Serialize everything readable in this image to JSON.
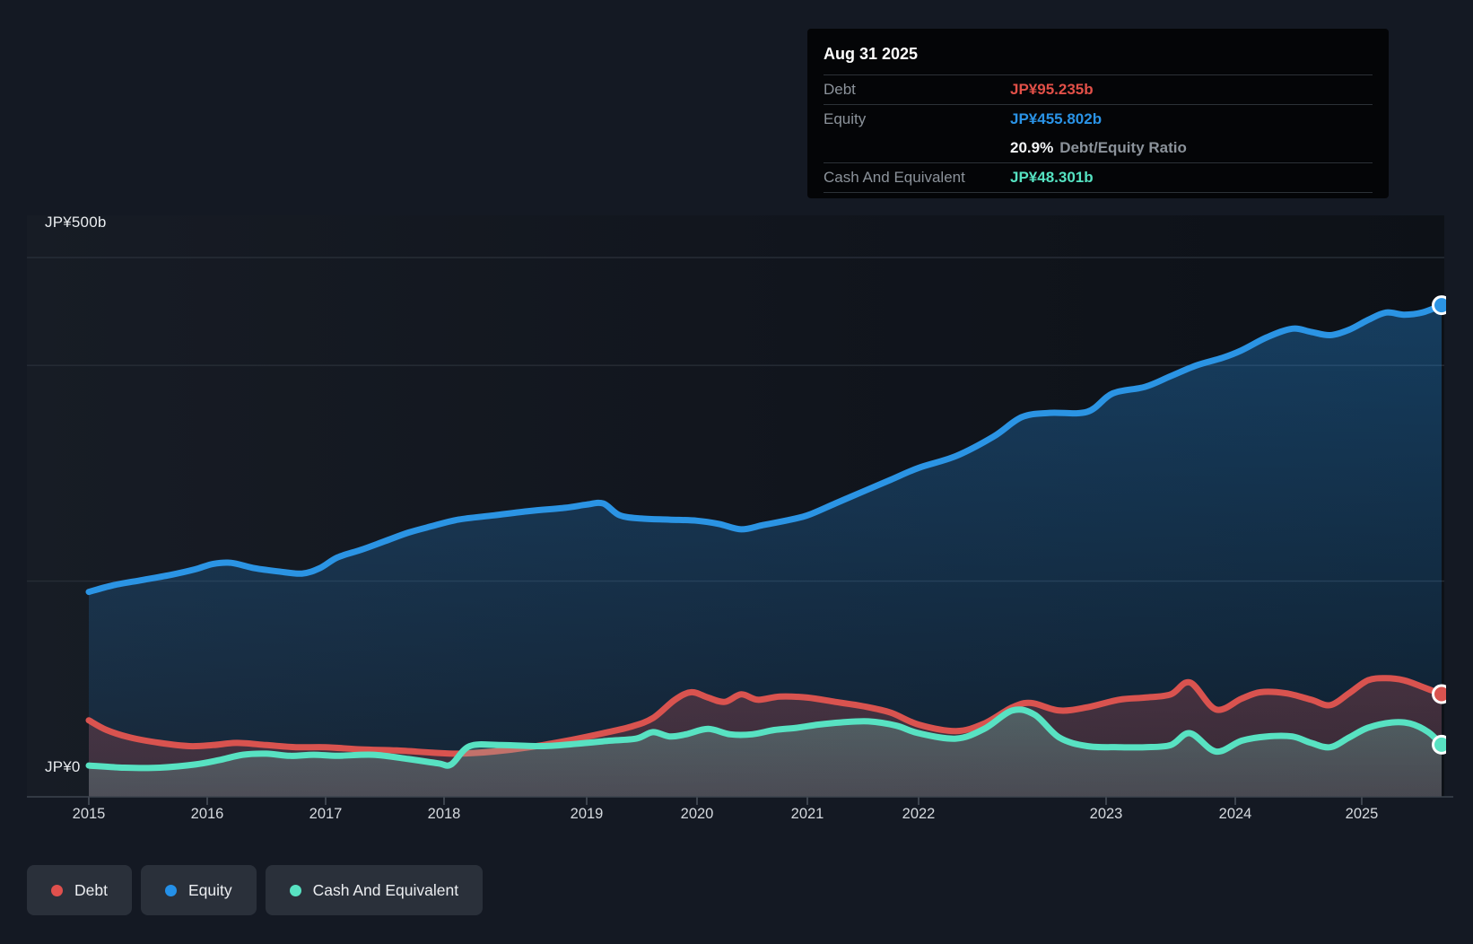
{
  "tooltip": {
    "date": "Aug 31 2025",
    "rows": [
      {
        "label": "Debt",
        "value": "JP¥95.235b",
        "color": "#e25048",
        "suffix": "",
        "divider": true
      },
      {
        "label": "Equity",
        "value": "JP¥455.802b",
        "color": "#2a93e6",
        "suffix": "",
        "divider": false
      },
      {
        "label": "",
        "value": "20.9%",
        "color": "#f3f5f7",
        "suffix": "Debt/Equity Ratio",
        "divider": true
      },
      {
        "label": "Cash And Equivalent",
        "value": "JP¥48.301b",
        "color": "#55e2c1",
        "suffix": "",
        "divider": true
      }
    ]
  },
  "y_axis": {
    "top_label": "JP¥500b",
    "bottom_label": "JP¥0"
  },
  "legend": [
    {
      "label": "Debt",
      "color": "#e0504d"
    },
    {
      "label": "Equity",
      "color": "#2490e8"
    },
    {
      "label": "Cash And Equivalent",
      "color": "#58e2c2"
    }
  ],
  "colors": {
    "background": "#141923",
    "gridline": "#272d36",
    "axis": "#3d444e",
    "debt_line": "#d9534f",
    "equity_line": "#2b94e4",
    "cash_line": "#58e2c2",
    "marker_ring": "#ffffff"
  },
  "chart_data": {
    "type": "area",
    "unit": "JP¥ billions",
    "ylim": [
      0,
      500
    ],
    "gridlines_b": [
      500,
      400,
      200
    ],
    "x_range": [
      2015.0,
      2025.66
    ],
    "x_ticks": [
      "2015",
      "2016",
      "2017",
      "2018",
      "2019",
      "2020",
      "2021",
      "2022",
      "2023",
      "2024",
      "2025"
    ],
    "as_of": "Aug 31 2025",
    "legend_position": "bottom-left",
    "series": [
      {
        "name": "Equity",
        "color": "#2b94e4",
        "points": [
          [
            2015.0,
            190
          ],
          [
            2015.2,
            196
          ],
          [
            2015.45,
            201
          ],
          [
            2015.7,
            206
          ],
          [
            2015.9,
            211
          ],
          [
            2016.05,
            216
          ],
          [
            2016.2,
            217
          ],
          [
            2016.4,
            212
          ],
          [
            2016.6,
            209
          ],
          [
            2016.8,
            207
          ],
          [
            2016.95,
            212
          ],
          [
            2017.1,
            222
          ],
          [
            2017.3,
            229
          ],
          [
            2017.5,
            237
          ],
          [
            2017.7,
            245
          ],
          [
            2017.9,
            251
          ],
          [
            2018.1,
            257
          ],
          [
            2018.35,
            261
          ],
          [
            2018.6,
            265
          ],
          [
            2018.85,
            268
          ],
          [
            2019.0,
            271
          ],
          [
            2019.15,
            272
          ],
          [
            2019.3,
            261
          ],
          [
            2019.5,
            258
          ],
          [
            2019.75,
            257
          ],
          [
            2020.0,
            256
          ],
          [
            2020.2,
            253
          ],
          [
            2020.4,
            248
          ],
          [
            2020.6,
            252
          ],
          [
            2020.8,
            256
          ],
          [
            2021.0,
            261
          ],
          [
            2021.25,
            272
          ],
          [
            2021.5,
            283
          ],
          [
            2021.75,
            294
          ],
          [
            2022.0,
            305
          ],
          [
            2022.2,
            316
          ],
          [
            2022.4,
            334
          ],
          [
            2022.55,
            352
          ],
          [
            2022.7,
            356
          ],
          [
            2022.9,
            357
          ],
          [
            2023.05,
            374
          ],
          [
            2023.3,
            380
          ],
          [
            2023.5,
            390
          ],
          [
            2023.7,
            400
          ],
          [
            2023.9,
            407
          ],
          [
            2024.05,
            414
          ],
          [
            2024.25,
            426
          ],
          [
            2024.45,
            434
          ],
          [
            2024.6,
            431
          ],
          [
            2024.75,
            428
          ],
          [
            2024.9,
            433
          ],
          [
            2025.05,
            442
          ],
          [
            2025.2,
            449
          ],
          [
            2025.35,
            447
          ],
          [
            2025.5,
            449
          ],
          [
            2025.66,
            455.802
          ]
        ]
      },
      {
        "name": "Debt",
        "color": "#d9534f",
        "points": [
          [
            2015.0,
            71
          ],
          [
            2015.15,
            62
          ],
          [
            2015.35,
            55
          ],
          [
            2015.6,
            50
          ],
          [
            2015.85,
            47
          ],
          [
            2016.05,
            48
          ],
          [
            2016.25,
            50
          ],
          [
            2016.5,
            48
          ],
          [
            2016.75,
            46
          ],
          [
            2017.0,
            46
          ],
          [
            2017.3,
            44
          ],
          [
            2017.6,
            43
          ],
          [
            2017.9,
            41
          ],
          [
            2018.1,
            40
          ],
          [
            2018.35,
            42
          ],
          [
            2018.6,
            46
          ],
          [
            2018.9,
            53
          ],
          [
            2019.15,
            59
          ],
          [
            2019.4,
            65
          ],
          [
            2019.6,
            73
          ],
          [
            2019.8,
            90
          ],
          [
            2019.95,
            97
          ],
          [
            2020.1,
            92
          ],
          [
            2020.25,
            88
          ],
          [
            2020.4,
            95
          ],
          [
            2020.55,
            90
          ],
          [
            2020.75,
            93
          ],
          [
            2021.0,
            92
          ],
          [
            2021.25,
            88
          ],
          [
            2021.5,
            84
          ],
          [
            2021.75,
            78
          ],
          [
            2022.0,
            67
          ],
          [
            2022.2,
            61
          ],
          [
            2022.35,
            68
          ],
          [
            2022.5,
            83
          ],
          [
            2022.6,
            87
          ],
          [
            2022.75,
            80
          ],
          [
            2022.9,
            83
          ],
          [
            2023.1,
            90
          ],
          [
            2023.3,
            92
          ],
          [
            2023.5,
            95
          ],
          [
            2023.65,
            106
          ],
          [
            2023.85,
            81
          ],
          [
            2024.05,
            91
          ],
          [
            2024.2,
            97
          ],
          [
            2024.4,
            96
          ],
          [
            2024.6,
            90
          ],
          [
            2024.75,
            85
          ],
          [
            2024.9,
            96
          ],
          [
            2025.05,
            108
          ],
          [
            2025.2,
            110
          ],
          [
            2025.35,
            108
          ],
          [
            2025.5,
            102
          ],
          [
            2025.66,
            95.235
          ]
        ]
      },
      {
        "name": "Cash And Equivalent",
        "color": "#58e2c2",
        "points": [
          [
            2015.0,
            29
          ],
          [
            2015.3,
            27
          ],
          [
            2015.6,
            27
          ],
          [
            2015.9,
            30
          ],
          [
            2016.1,
            34
          ],
          [
            2016.3,
            39
          ],
          [
            2016.5,
            40
          ],
          [
            2016.7,
            38
          ],
          [
            2016.9,
            39
          ],
          [
            2017.1,
            38
          ],
          [
            2017.4,
            39
          ],
          [
            2017.7,
            35
          ],
          [
            2017.95,
            31
          ],
          [
            2018.05,
            30
          ],
          [
            2018.18,
            47
          ],
          [
            2018.4,
            48
          ],
          [
            2018.7,
            47
          ],
          [
            2019.0,
            50
          ],
          [
            2019.2,
            52
          ],
          [
            2019.45,
            54
          ],
          [
            2019.6,
            60
          ],
          [
            2019.75,
            56
          ],
          [
            2019.9,
            58
          ],
          [
            2020.1,
            63
          ],
          [
            2020.3,
            58
          ],
          [
            2020.5,
            58
          ],
          [
            2020.7,
            62
          ],
          [
            2020.9,
            64
          ],
          [
            2021.1,
            67
          ],
          [
            2021.3,
            69
          ],
          [
            2021.55,
            70
          ],
          [
            2021.8,
            66
          ],
          [
            2022.0,
            59
          ],
          [
            2022.2,
            54
          ],
          [
            2022.35,
            63
          ],
          [
            2022.5,
            80
          ],
          [
            2022.62,
            76
          ],
          [
            2022.75,
            55
          ],
          [
            2022.9,
            47
          ],
          [
            2023.1,
            46
          ],
          [
            2023.3,
            46
          ],
          [
            2023.5,
            48
          ],
          [
            2023.65,
            59
          ],
          [
            2023.85,
            42
          ],
          [
            2024.05,
            52
          ],
          [
            2024.25,
            56
          ],
          [
            2024.45,
            56
          ],
          [
            2024.6,
            50
          ],
          [
            2024.75,
            46
          ],
          [
            2024.9,
            55
          ],
          [
            2025.05,
            64
          ],
          [
            2025.25,
            69
          ],
          [
            2025.4,
            68
          ],
          [
            2025.55,
            60
          ],
          [
            2025.66,
            48.301
          ]
        ]
      }
    ]
  }
}
